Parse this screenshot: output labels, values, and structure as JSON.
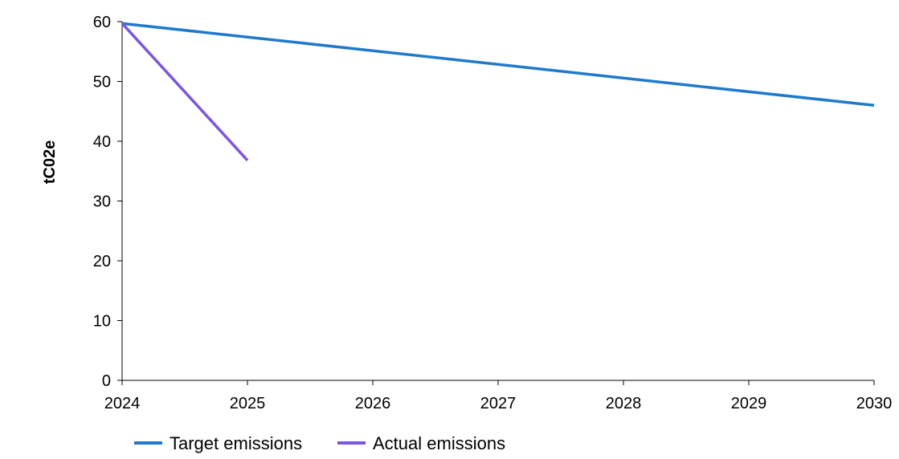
{
  "chart_data": {
    "type": "line",
    "title": "",
    "xlabel": "",
    "ylabel": "tC02e",
    "x": [
      2024,
      2025,
      2026,
      2027,
      2028,
      2029,
      2030
    ],
    "xlim": [
      2024,
      2030
    ],
    "ylim": [
      0,
      60
    ],
    "yticks": [
      0,
      10,
      20,
      30,
      40,
      50,
      60
    ],
    "grid": false,
    "legend_position": "bottom-left",
    "series": [
      {
        "name": "Target emissions",
        "color": "#1F7ACC",
        "points": [
          [
            2024,
            59.7
          ],
          [
            2030,
            46.0
          ]
        ]
      },
      {
        "name": "Actual emissions",
        "color": "#7B55E6",
        "points": [
          [
            2024,
            59.7
          ],
          [
            2025,
            36.8
          ]
        ]
      }
    ]
  }
}
